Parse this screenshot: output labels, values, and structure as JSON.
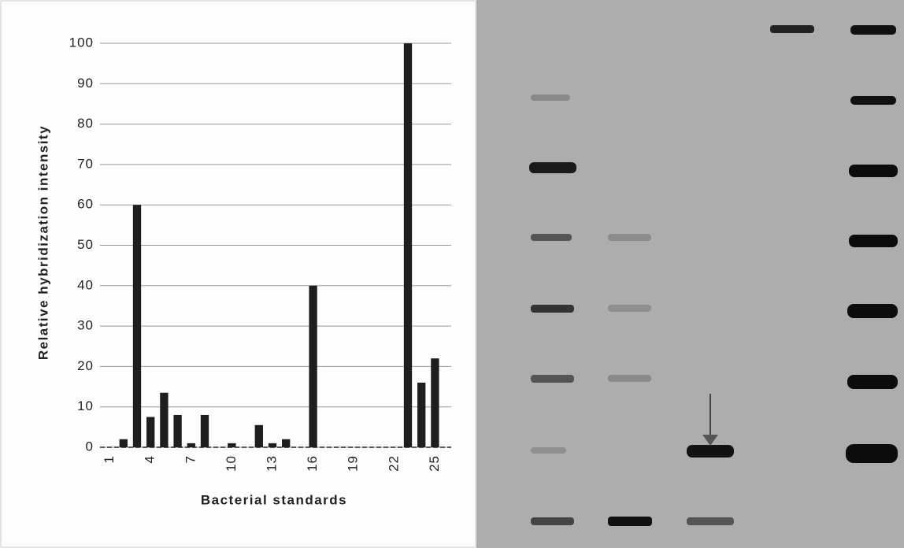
{
  "chart_data": {
    "type": "bar",
    "y_label": "Relative hybridization intensity",
    "x_label": "Bacterial standards",
    "categories": [
      "1",
      null,
      null,
      "4",
      null,
      null,
      "7",
      null,
      null,
      "10",
      null,
      null,
      "13",
      null,
      null,
      "16",
      null,
      null,
      "19",
      null,
      null,
      "22",
      null,
      null,
      "25"
    ],
    "values": [
      0,
      2,
      60,
      7.5,
      13.5,
      8,
      1,
      8,
      0,
      1,
      0,
      5.5,
      1,
      2,
      0,
      40,
      0,
      0,
      0,
      0,
      0,
      0,
      100,
      16,
      22
    ],
    "color": "#1e1e1e",
    "ylim": [
      0,
      100
    ],
    "yticks": [
      0,
      10,
      20,
      30,
      40,
      50,
      60,
      70,
      80,
      90,
      100
    ],
    "grid": true
  }
}
